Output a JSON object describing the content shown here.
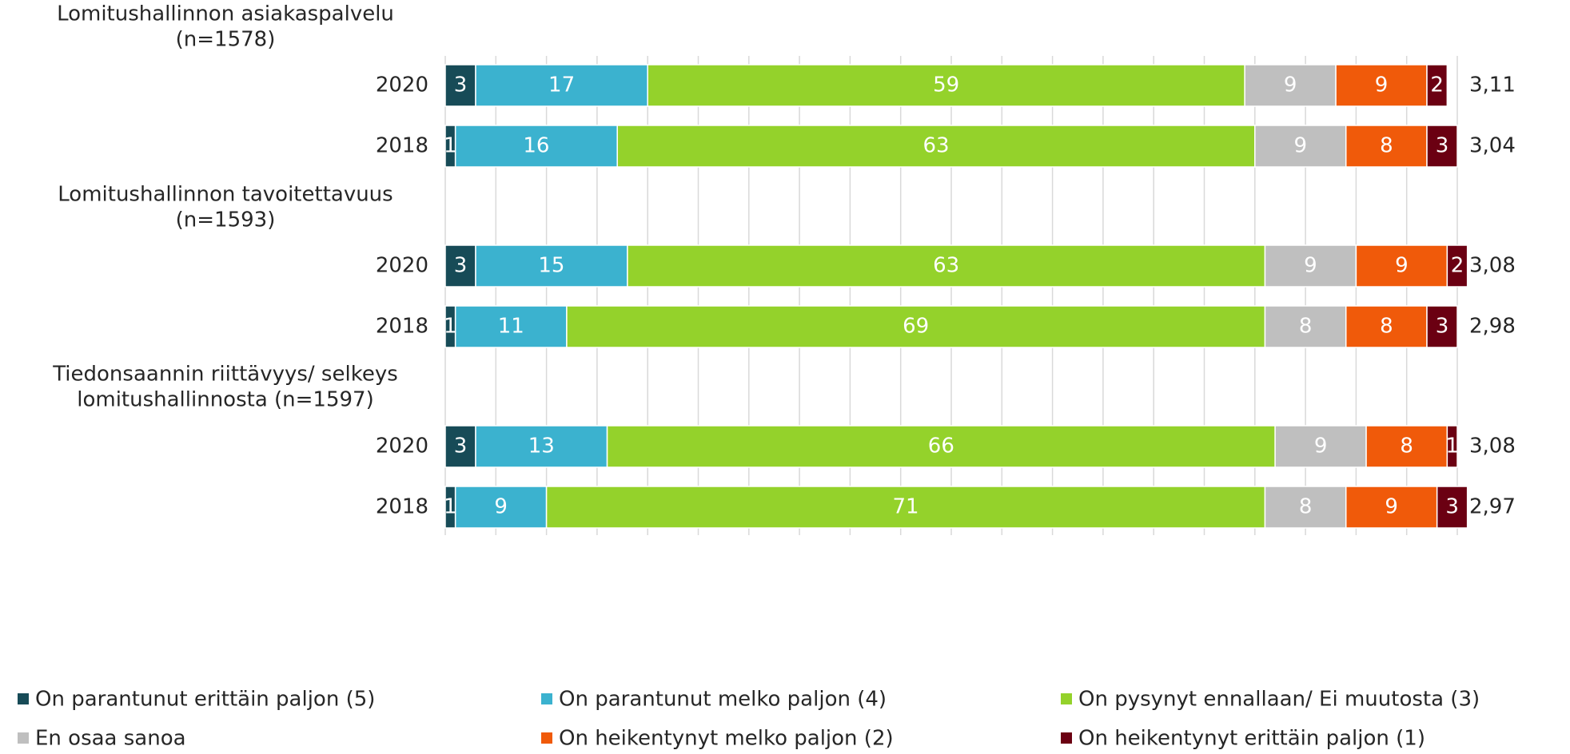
{
  "chart_data": {
    "type": "bar",
    "orientation": "horizontal",
    "stacked": true,
    "grid": true,
    "groups": [
      {
        "label": [
          "Lomitushallinnon asiakaspalvelu",
          "(n=1578)"
        ]
      },
      {
        "label": [
          "Lomitushallinnon tavoitettavuus",
          "(n=1593)"
        ]
      },
      {
        "label": [
          "Tiedonsaannin riittävyys/ selkeys",
          "lomitushallinnosta (n=1597)"
        ]
      }
    ],
    "categories": [
      "2020",
      "2018",
      "2020",
      "2018",
      "2020",
      "2018"
    ],
    "xlim": [
      0,
      100
    ],
    "xticks": [
      0,
      5,
      10,
      15,
      20,
      25,
      30,
      35,
      40,
      45,
      50,
      55,
      60,
      65,
      70,
      75,
      80,
      85,
      90,
      95,
      100
    ],
    "series": [
      {
        "name": "On parantunut erittäin paljon (5)",
        "color": "#174b57",
        "values": [
          3,
          1,
          3,
          1,
          3,
          1
        ]
      },
      {
        "name": "On parantunut melko paljon (4)",
        "color": "#3bb2cf",
        "values": [
          17,
          16,
          15,
          11,
          13,
          9
        ]
      },
      {
        "name": "On pysynyt ennallaan/ Ei muutosta (3)",
        "color": "#94d22b",
        "values": [
          59,
          63,
          63,
          69,
          66,
          71
        ]
      },
      {
        "name": "En osaa sanoa",
        "color": "#bfbfbf",
        "values": [
          9,
          9,
          9,
          8,
          9,
          8
        ]
      },
      {
        "name": "On heikentynyt melko paljon (2)",
        "color": "#f05a0a",
        "values": [
          9,
          8,
          9,
          8,
          8,
          9
        ]
      },
      {
        "name": "On heikentynyt erittäin paljon (1)",
        "color": "#6b0012",
        "values": [
          2,
          3,
          2,
          3,
          1,
          3
        ]
      }
    ],
    "scores": [
      3.11,
      3.04,
      3.08,
      2.98,
      3.08,
      2.97
    ],
    "score_labels": [
      "3,11",
      "3,04",
      "3,08",
      "2,98",
      "3,08",
      "2,97"
    ]
  }
}
